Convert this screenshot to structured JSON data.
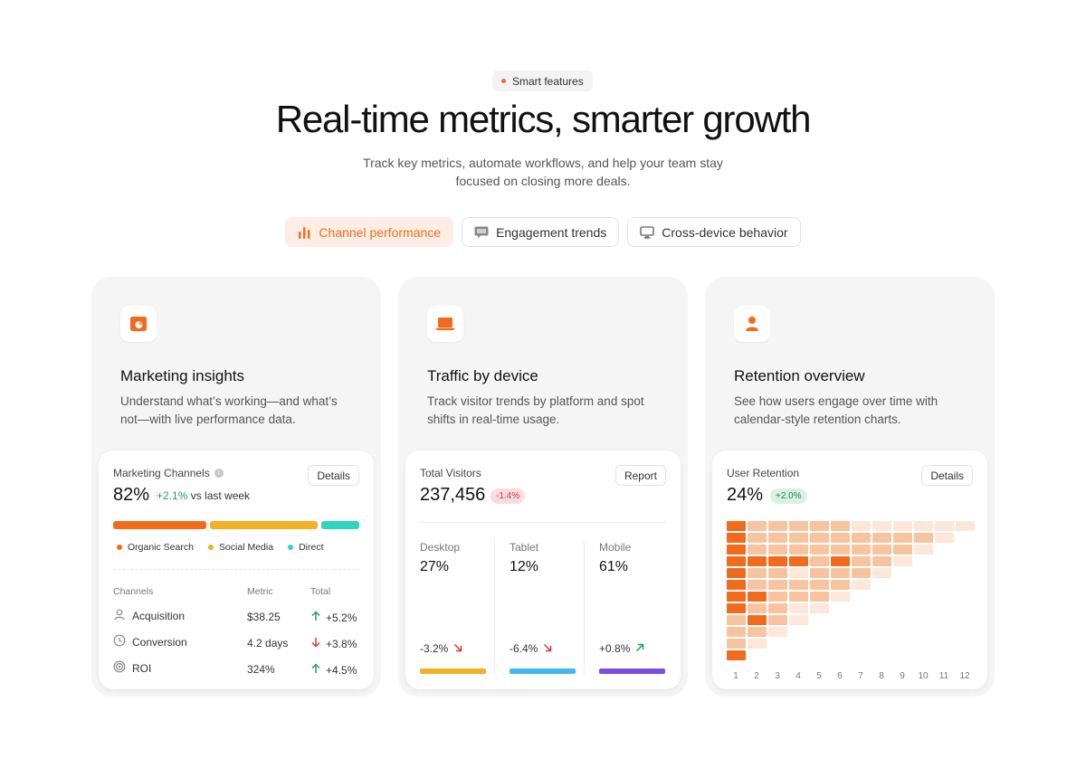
{
  "header": {
    "badge": "Smart features",
    "title": "Real-time metrics, smarter growth",
    "subtitle_line1": "Track key metrics, automate workflows, and help your team stay",
    "subtitle_line2": "focused on closing more deals."
  },
  "tabs": [
    {
      "label": "Channel performance",
      "icon": "bar-chart-icon",
      "active": true
    },
    {
      "label": "Engagement trends",
      "icon": "message-icon",
      "active": false
    },
    {
      "label": "Cross-device behavior",
      "icon": "monitor-icon",
      "active": false
    }
  ],
  "colors": {
    "accent": "#f26b1d",
    "organic": "#f26b1d",
    "social": "#f2b127",
    "direct": "#2dd4bf",
    "desktop": "#f2b127",
    "tablet": "#3fb9ee",
    "mobile": "#7c4ce3"
  },
  "cards": {
    "marketing": {
      "icon": "chart-icon",
      "title": "Marketing insights",
      "description": "Understand what’s working—and what’s not—with live performance data.",
      "label": "Marketing Channels",
      "details": "Details",
      "value": "82%",
      "change": "+2.1%",
      "change_suffix": "vs last week",
      "shares": [
        {
          "name": "Organic Search",
          "fraction": 0.39
        },
        {
          "name": "Social Media",
          "fraction": 0.45
        },
        {
          "name": "Direct",
          "fraction": 0.16
        }
      ],
      "legend": [
        "Organic Search",
        "Social Media",
        "Direct"
      ],
      "columns": [
        "Channels",
        "Metric",
        "Total"
      ],
      "rows": [
        {
          "name": "Acquisition",
          "icon": "user-icon",
          "metric": "$38.25",
          "total": "+5.2%",
          "trend": "up"
        },
        {
          "name": "Conversion",
          "icon": "clock-icon",
          "metric": "4.2 days",
          "total": "+3.8%",
          "trend": "down"
        },
        {
          "name": "ROI",
          "icon": "target-icon",
          "metric": "324%",
          "total": "+4.5%",
          "trend": "up"
        }
      ]
    },
    "traffic": {
      "icon": "laptop-icon",
      "title": "Traffic by device",
      "description": "Track visitor trends by platform and spot shifts in real-time usage.",
      "label": "Total Visitors",
      "report": "Report",
      "value": "237,456",
      "change": "-1.4%",
      "devices": [
        {
          "name": "Desktop",
          "value": "27%",
          "change": "-3.2%",
          "trend": "down"
        },
        {
          "name": "Tablet",
          "value": "12%",
          "change": "-6.4%",
          "trend": "down"
        },
        {
          "name": "Mobile",
          "value": "61%",
          "change": "+0.8%",
          "trend": "up"
        }
      ]
    },
    "retention": {
      "icon": "person-icon",
      "title": "Retention overview",
      "description": "See how users engage over time with calendar-style retention charts.",
      "label": "User Retention",
      "details": "Details",
      "value": "24%",
      "change": "+2.0%",
      "x_ticks": [
        "1",
        "2",
        "3",
        "4",
        "5",
        "6",
        "7",
        "8",
        "9",
        "10",
        "11",
        "12"
      ],
      "heatmap": [
        [
          3,
          1,
          1,
          1,
          1,
          1,
          0,
          0,
          0,
          0,
          0,
          0
        ],
        [
          3,
          1,
          1,
          1,
          1,
          1,
          1,
          1,
          1,
          1,
          0
        ],
        [
          3,
          1,
          1,
          1,
          1,
          1,
          1,
          1,
          1,
          0
        ],
        [
          3,
          3,
          3,
          3,
          1,
          3,
          1,
          1,
          0
        ],
        [
          3,
          1,
          1,
          0,
          1,
          1,
          1,
          0
        ],
        [
          3,
          1,
          1,
          1,
          1,
          1,
          0
        ],
        [
          3,
          3,
          1,
          1,
          1,
          0
        ],
        [
          3,
          1,
          1,
          0,
          0
        ],
        [
          1,
          3,
          1,
          0
        ],
        [
          1,
          1,
          0
        ],
        [
          1,
          0
        ],
        [
          3
        ]
      ]
    }
  }
}
